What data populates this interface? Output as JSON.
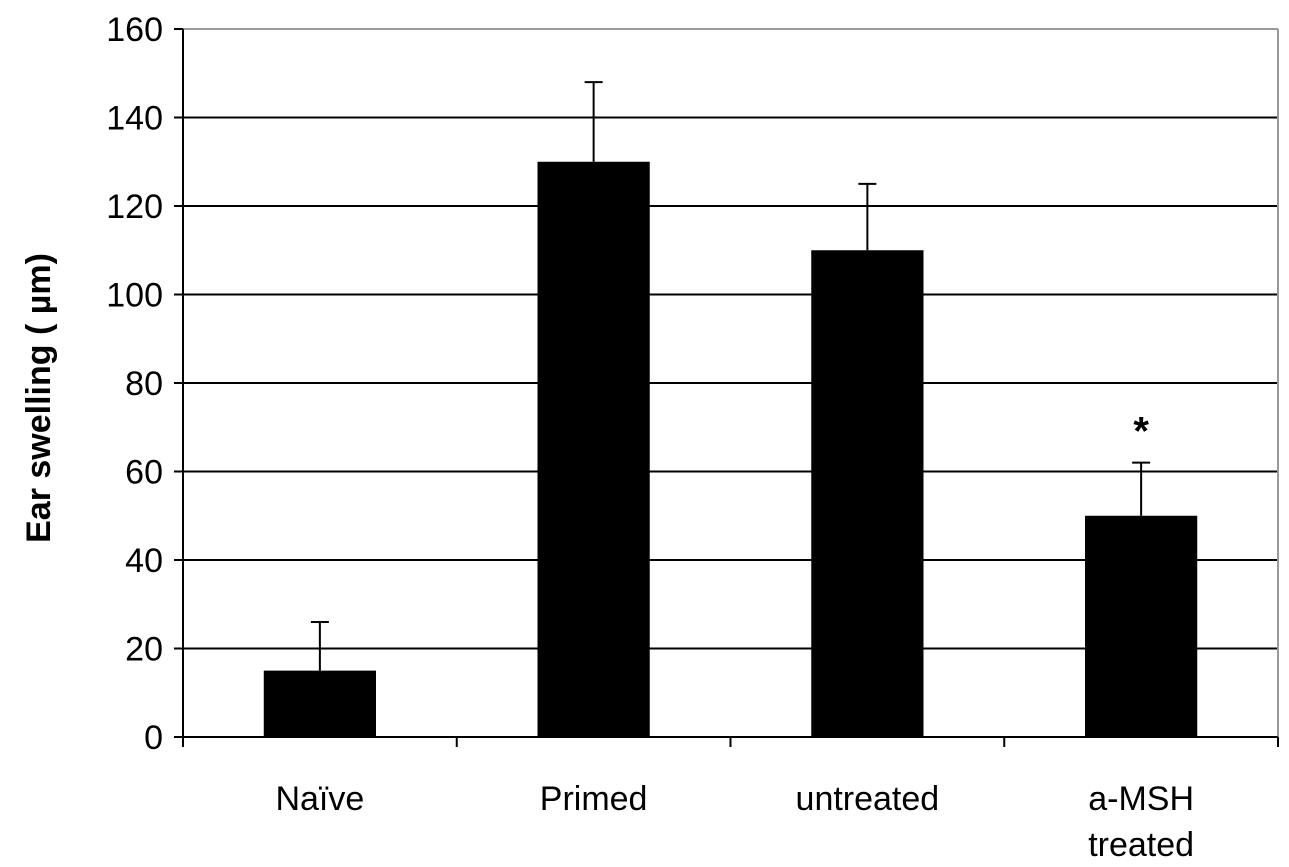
{
  "chart_data": {
    "type": "bar",
    "categories": [
      [
        "Naïve"
      ],
      [
        "Primed"
      ],
      [
        "untreated"
      ],
      [
        "a-MSH",
        "treated"
      ]
    ],
    "series": [
      {
        "values": [
          15,
          130,
          110,
          50
        ],
        "errors": [
          11,
          18,
          15,
          12
        ]
      }
    ],
    "ylabel": "Ear swelling ( µm)",
    "xlabel": "",
    "ylim": [
      0,
      160
    ],
    "yticks": [
      0,
      20,
      40,
      60,
      80,
      100,
      120,
      140,
      160
    ],
    "grid": true,
    "bar_color": "#000000",
    "annotations": [
      {
        "category_index": 3,
        "text": "*"
      }
    ]
  }
}
